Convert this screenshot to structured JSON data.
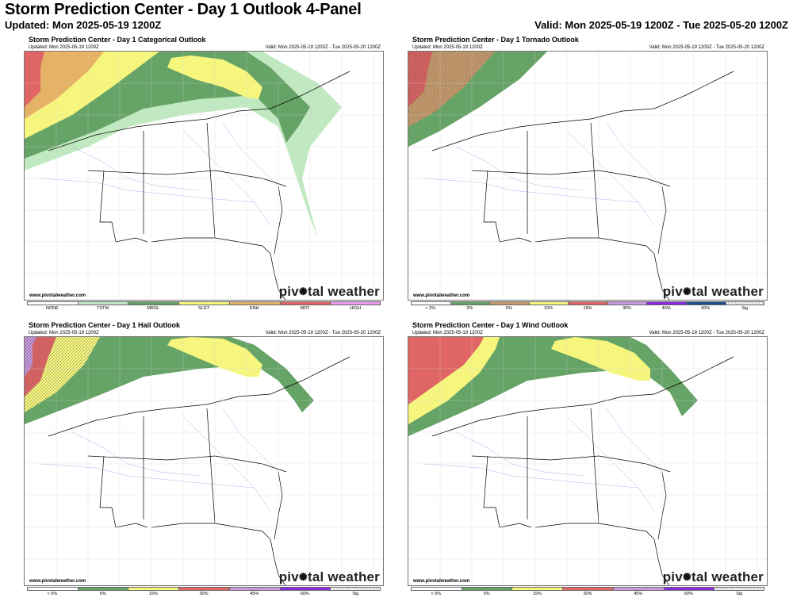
{
  "header": {
    "title": "Storm Prediction Center - Day 1 Outlook 4-Panel",
    "updated": "Updated: Mon 2025-05-19 1200Z",
    "valid": "Valid: Mon 2025-05-19 1200Z - Tue 2025-05-20 1200Z"
  },
  "panels": [
    {
      "title": "Storm Prediction Center - Day 1 Categorical Outlook",
      "updated": "Updated: Mon 2025-05-19 1200Z",
      "valid": "Valid: Mon 2025-05-19 1200Z - Tue 2025-05-20 1200Z",
      "site": "www.pivotalweather.com",
      "brand_left": "piv",
      "brand_right": "tal weather",
      "legend": [
        {
          "label": "NONE",
          "color": "#ffffff"
        },
        {
          "label": "TSTM",
          "color": "#c1e9c1"
        },
        {
          "label": "MRGL",
          "color": "#66a366"
        },
        {
          "label": "SLGT",
          "color": "#f6f67f"
        },
        {
          "label": "ENH",
          "color": "#e6b366"
        },
        {
          "label": "MDT",
          "color": "#e06666"
        },
        {
          "label": "HIGH",
          "color": "#ee99ee"
        }
      ]
    },
    {
      "title": "Storm Prediction Center - Day 1 Tornado Outlook",
      "updated": "Updated: Mon 2025-05-19 1200Z",
      "valid": "Valid: Mon 2025-05-19 1200Z - Tue 2025-05-20 1200Z",
      "site": "www.pivotalweather.com",
      "brand_left": "piv",
      "brand_right": "tal weather",
      "legend": [
        {
          "label": "< 2%",
          "color": "#ffffff"
        },
        {
          "label": "2%",
          "color": "#66a366"
        },
        {
          "label": "5%",
          "color": "#c49a6c"
        },
        {
          "label": "10%",
          "color": "#f6f67f"
        },
        {
          "label": "15%",
          "color": "#e06666"
        },
        {
          "label": "30%",
          "color": "#c99ae0"
        },
        {
          "label": "45%",
          "color": "#8a2be2"
        },
        {
          "label": "60%",
          "color": "#1f4f8a"
        },
        {
          "label": "Sig",
          "color": "hatch"
        }
      ]
    },
    {
      "title": "Storm Prediction Center - Day 1 Hail Outlook",
      "updated": "Updated: Mon 2025-05-19 1200Z",
      "valid": "Valid: Mon 2025-05-19 1200Z - Tue 2025-05-20 1200Z",
      "site": "www.pivotalweather.com",
      "brand_left": "piv",
      "brand_right": "tal weather",
      "legend": [
        {
          "label": "< 5%",
          "color": "#ffffff"
        },
        {
          "label": "5%",
          "color": "#66a366"
        },
        {
          "label": "15%",
          "color": "#f6f67f"
        },
        {
          "label": "30%",
          "color": "#e06666"
        },
        {
          "label": "45%",
          "color": "#c99ae0"
        },
        {
          "label": "60%",
          "color": "#8a2be2"
        },
        {
          "label": "Sig",
          "color": "hatch"
        }
      ]
    },
    {
      "title": "Storm Prediction Center - Day 1 Wind Outlook",
      "updated": "Updated: Mon 2025-05-19 1200Z",
      "valid": "Valid: Mon 2025-05-19 1200Z - Tue 2025-05-20 1200Z",
      "site": "www.pivotalweather.com",
      "brand_left": "piv",
      "brand_right": "tal weather",
      "legend": [
        {
          "label": "< 5%",
          "color": "#ffffff"
        },
        {
          "label": "5%",
          "color": "#66a366"
        },
        {
          "label": "15%",
          "color": "#f6f67f"
        },
        {
          "label": "30%",
          "color": "#e06666"
        },
        {
          "label": "45%",
          "color": "#c99ae0"
        },
        {
          "label": "60%",
          "color": "#8a2be2"
        },
        {
          "label": "Sig",
          "color": "hatch"
        }
      ]
    }
  ]
}
